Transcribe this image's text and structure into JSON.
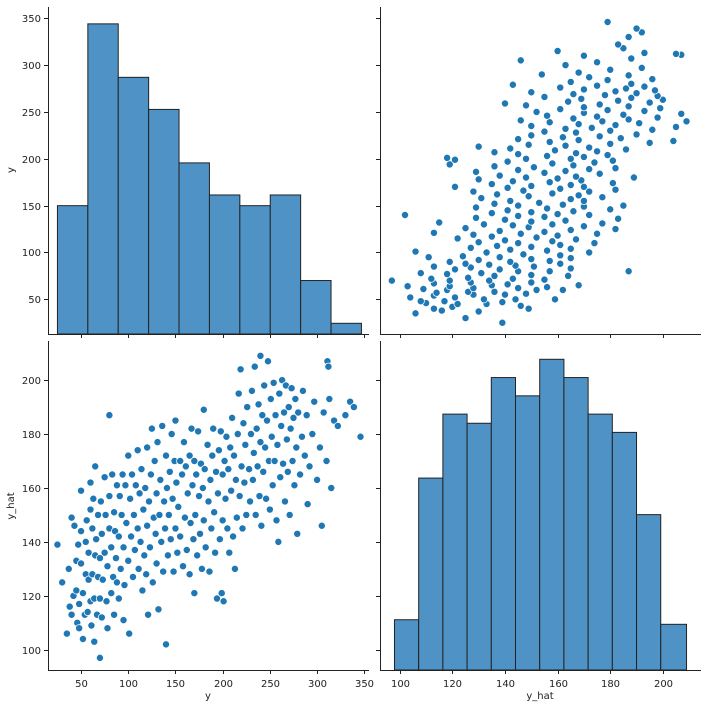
{
  "chart_data": {
    "type": "pairplot",
    "variables": [
      "y",
      "y_hat"
    ],
    "colors": {
      "mark": "#1f77b4",
      "bar": "#4f93c6"
    },
    "grid": false,
    "panels": [
      {
        "id": "y-hist",
        "row": 0,
        "col": 0,
        "type": "bar",
        "xlabel": "",
        "ylabel": "y",
        "xlim": [
          15,
          355
        ],
        "ylim": [
          13,
          362
        ],
        "yticks": [
          50,
          100,
          150,
          200,
          250,
          300,
          350
        ],
        "bins": [
          25,
          57.2,
          89.4,
          121.6,
          153.8,
          186,
          218.2,
          250.4,
          282.6,
          314.8,
          347
        ],
        "counts": [
          12,
          29,
          24,
          21,
          16,
          13,
          12,
          13,
          5,
          1
        ]
      },
      {
        "id": "y_hat-vs-y",
        "row": 0,
        "col": 1,
        "type": "scatter",
        "xlabel": "",
        "ylabel": "",
        "x_var": "y_hat",
        "y_var": "y",
        "xlim": [
          92.5,
          214.5
        ],
        "ylim": [
          13,
          362
        ]
      },
      {
        "id": "y-vs-y_hat",
        "row": 1,
        "col": 0,
        "type": "scatter",
        "xlabel": "y",
        "ylabel": "y_hat",
        "x_var": "y",
        "y_var": "y_hat",
        "xlim": [
          15,
          355
        ],
        "ylim": [
          92.5,
          214.5
        ],
        "xticks": [
          50,
          100,
          150,
          200,
          250,
          300,
          350
        ],
        "yticks": [
          100,
          120,
          140,
          160,
          180,
          200
        ]
      },
      {
        "id": "y_hat-hist",
        "row": 1,
        "col": 1,
        "type": "bar",
        "xlabel": "y_hat",
        "ylabel": "",
        "xlim": [
          92.5,
          214.5
        ],
        "xticks": [
          100,
          120,
          140,
          160,
          180,
          200
        ],
        "bins": [
          98,
          107.2,
          116.4,
          125.6,
          134.8,
          144,
          153.2,
          162.4,
          171.6,
          180.8,
          190,
          199.2,
          209
        ],
        "counts": [
          11,
          42,
          56,
          54,
          64,
          60,
          68,
          64,
          56,
          52,
          34,
          10
        ],
        "count_max": 72
      }
    ],
    "points": [
      [
        25,
        139
      ],
      [
        30,
        125
      ],
      [
        35,
        106
      ],
      [
        37,
        130
      ],
      [
        38,
        116
      ],
      [
        40,
        113
      ],
      [
        40,
        149
      ],
      [
        42,
        120
      ],
      [
        43,
        146
      ],
      [
        45,
        122
      ],
      [
        45,
        133
      ],
      [
        46,
        110
      ],
      [
        47,
        139
      ],
      [
        48,
        108
      ],
      [
        48,
        117
      ],
      [
        50,
        132
      ],
      [
        50,
        159
      ],
      [
        50,
        144
      ],
      [
        52,
        121
      ],
      [
        52,
        104
      ],
      [
        54,
        113
      ],
      [
        55,
        128
      ],
      [
        55,
        140
      ],
      [
        56,
        148
      ],
      [
        57,
        114
      ],
      [
        58,
        136
      ],
      [
        58,
        126
      ],
      [
        60,
        118
      ],
      [
        60,
        152
      ],
      [
        60,
        162
      ],
      [
        61,
        109
      ],
      [
        62,
        128
      ],
      [
        62,
        145
      ],
      [
        63,
        156
      ],
      [
        64,
        119
      ],
      [
        64,
        103
      ],
      [
        65,
        135
      ],
      [
        65,
        168
      ],
      [
        66,
        141
      ],
      [
        67,
        113
      ],
      [
        68,
        127
      ],
      [
        68,
        150
      ],
      [
        70,
        97
      ],
      [
        70,
        119
      ],
      [
        70,
        134
      ],
      [
        71,
        155
      ],
      [
        72,
        143
      ],
      [
        72,
        112
      ],
      [
        73,
        126
      ],
      [
        75,
        164
      ],
      [
        75,
        136
      ],
      [
        76,
        150
      ],
      [
        77,
        118
      ],
      [
        78,
        108
      ],
      [
        78,
        131
      ],
      [
        80,
        145
      ],
      [
        80,
        157
      ],
      [
        80,
        187
      ],
      [
        82,
        121
      ],
      [
        82,
        138
      ],
      [
        83,
        165
      ],
      [
        84,
        127
      ],
      [
        85,
        113
      ],
      [
        85,
        151
      ],
      [
        86,
        144
      ],
      [
        87,
        134
      ],
      [
        88,
        161
      ],
      [
        88,
        125
      ],
      [
        90,
        119
      ],
      [
        90,
        142
      ],
      [
        91,
        157
      ],
      [
        92,
        130
      ],
      [
        93,
        150
      ],
      [
        94,
        165
      ],
      [
        95,
        111
      ],
      [
        95,
        138
      ],
      [
        96,
        124
      ],
      [
        97,
        161
      ],
      [
        98,
        147
      ],
      [
        100,
        133
      ],
      [
        100,
        172
      ],
      [
        101,
        106
      ],
      [
        102,
        156
      ],
      [
        103,
        142
      ],
      [
        104,
        165
      ],
      [
        105,
        127
      ],
      [
        106,
        150
      ],
      [
        107,
        137
      ],
      [
        108,
        161
      ],
      [
        110,
        145
      ],
      [
        110,
        174
      ],
      [
        111,
        130
      ],
      [
        112,
        158
      ],
      [
        113,
        140
      ],
      [
        114,
        167
      ],
      [
        115,
        122
      ],
      [
        116,
        152
      ],
      [
        117,
        135
      ],
      [
        118,
        160
      ],
      [
        119,
        128
      ],
      [
        120,
        146
      ],
      [
        120,
        175
      ],
      [
        121,
        113
      ],
      [
        122,
        155
      ],
      [
        123,
        138
      ],
      [
        124,
        165
      ],
      [
        125,
        182
      ],
      [
        126,
        125
      ],
      [
        127,
        149
      ],
      [
        128,
        170
      ],
      [
        129,
        143
      ],
      [
        130,
        158
      ],
      [
        130,
        132
      ],
      [
        131,
        177
      ],
      [
        132,
        115
      ],
      [
        133,
        150
      ],
      [
        134,
        163
      ],
      [
        135,
        140
      ],
      [
        136,
        183
      ],
      [
        137,
        129
      ],
      [
        138,
        155
      ],
      [
        139,
        145
      ],
      [
        140,
        172
      ],
      [
        140,
        102
      ],
      [
        141,
        160
      ],
      [
        142,
        135
      ],
      [
        143,
        150
      ],
      [
        144,
        166
      ],
      [
        145,
        141
      ],
      [
        146,
        180
      ],
      [
        147,
        156
      ],
      [
        148,
        129
      ],
      [
        149,
        170
      ],
      [
        150,
        145
      ],
      [
        150,
        185
      ],
      [
        151,
        162
      ],
      [
        152,
        136
      ],
      [
        153,
        153
      ],
      [
        155,
        170
      ],
      [
        155,
        142
      ],
      [
        157,
        165
      ],
      [
        158,
        131
      ],
      [
        159,
        177
      ],
      [
        160,
        149
      ],
      [
        161,
        168
      ],
      [
        162,
        137
      ],
      [
        163,
        158
      ],
      [
        165,
        172
      ],
      [
        165,
        128
      ],
      [
        166,
        147
      ],
      [
        167,
        182
      ],
      [
        168,
        161
      ],
      [
        169,
        141
      ],
      [
        170,
        170
      ],
      [
        170,
        121
      ],
      [
        171,
        150
      ],
      [
        172,
        165
      ],
      [
        173,
        135
      ],
      [
        174,
        181
      ],
      [
        175,
        157
      ],
      [
        176,
        143
      ],
      [
        177,
        169
      ],
      [
        178,
        130
      ],
      [
        179,
        160
      ],
      [
        180,
        189
      ],
      [
        180,
        148
      ],
      [
        181,
        167
      ],
      [
        182,
        138
      ],
      [
        184,
        176
      ],
      [
        185,
        155
      ],
      [
        186,
        129
      ],
      [
        187,
        163
      ],
      [
        188,
        145
      ],
      [
        189,
        172
      ],
      [
        190,
        182
      ],
      [
        191,
        151
      ],
      [
        192,
        136
      ],
      [
        193,
        166
      ],
      [
        194,
        119
      ],
      [
        195,
        158
      ],
      [
        196,
        174
      ],
      [
        197,
        141
      ],
      [
        198,
        181
      ],
      [
        199,
        121
      ],
      [
        200,
        165
      ],
      [
        200,
        148
      ],
      [
        201,
        118
      ],
      [
        202,
        170
      ],
      [
        203,
        156
      ],
      [
        204,
        179
      ],
      [
        205,
        145
      ],
      [
        206,
        167
      ],
      [
        207,
        136
      ],
      [
        208,
        175
      ],
      [
        209,
        159
      ],
      [
        210,
        186
      ],
      [
        211,
        142
      ],
      [
        212,
        172
      ],
      [
        213,
        130
      ],
      [
        214,
        163
      ],
      [
        215,
        149
      ],
      [
        216,
        180
      ],
      [
        217,
        195
      ],
      [
        218,
        157
      ],
      [
        219,
        204
      ],
      [
        220,
        168
      ],
      [
        221,
        145
      ],
      [
        222,
        184
      ],
      [
        223,
        162
      ],
      [
        224,
        176
      ],
      [
        225,
        150
      ],
      [
        226,
        190
      ],
      [
        228,
        167
      ],
      [
        229,
        155
      ],
      [
        230,
        180
      ],
      [
        231,
        196
      ],
      [
        232,
        163
      ],
      [
        233,
        173
      ],
      [
        234,
        205
      ],
      [
        235,
        150
      ],
      [
        236,
        182
      ],
      [
        237,
        168
      ],
      [
        238,
        191
      ],
      [
        239,
        157
      ],
      [
        240,
        177
      ],
      [
        240,
        209
      ],
      [
        241,
        146
      ],
      [
        242,
        187
      ],
      [
        243,
        166
      ],
      [
        244,
        198
      ],
      [
        245,
        175
      ],
      [
        246,
        156
      ],
      [
        247,
        185
      ],
      [
        248,
        207
      ],
      [
        249,
        170
      ],
      [
        250,
        152
      ],
      [
        251,
        193
      ],
      [
        252,
        179
      ],
      [
        253,
        161
      ],
      [
        254,
        199
      ],
      [
        255,
        170
      ],
      [
        256,
        187
      ],
      [
        257,
        148
      ],
      [
        258,
        176
      ],
      [
        259,
        140
      ],
      [
        260,
        195
      ],
      [
        261,
        164
      ],
      [
        262,
        183
      ],
      [
        263,
        200
      ],
      [
        264,
        169
      ],
      [
        265,
        188
      ],
      [
        266,
        155
      ],
      [
        267,
        198
      ],
      [
        268,
        178
      ],
      [
        269,
        166
      ],
      [
        270,
        190
      ],
      [
        271,
        150
      ],
      [
        272,
        182
      ],
      [
        273,
        197
      ],
      [
        274,
        170
      ],
      [
        275,
        186
      ],
      [
        276,
        161
      ],
      [
        277,
        193
      ],
      [
        278,
        175
      ],
      [
        279,
        143
      ],
      [
        280,
        188
      ],
      [
        282,
        165
      ],
      [
        284,
        179
      ],
      [
        285,
        196
      ],
      [
        287,
        172
      ],
      [
        289,
        187
      ],
      [
        290,
        154
      ],
      [
        292,
        168
      ],
      [
        295,
        180
      ],
      [
        297,
        192
      ],
      [
        300,
        163
      ],
      [
        303,
        175
      ],
      [
        305,
        146
      ],
      [
        307,
        188
      ],
      [
        310,
        170
      ],
      [
        311,
        207
      ],
      [
        312,
        205
      ],
      [
        313,
        193
      ],
      [
        315,
        160
      ],
      [
        318,
        185
      ],
      [
        322,
        183
      ],
      [
        330,
        187
      ],
      [
        335,
        192
      ],
      [
        339,
        190
      ],
      [
        346,
        179
      ]
    ]
  }
}
